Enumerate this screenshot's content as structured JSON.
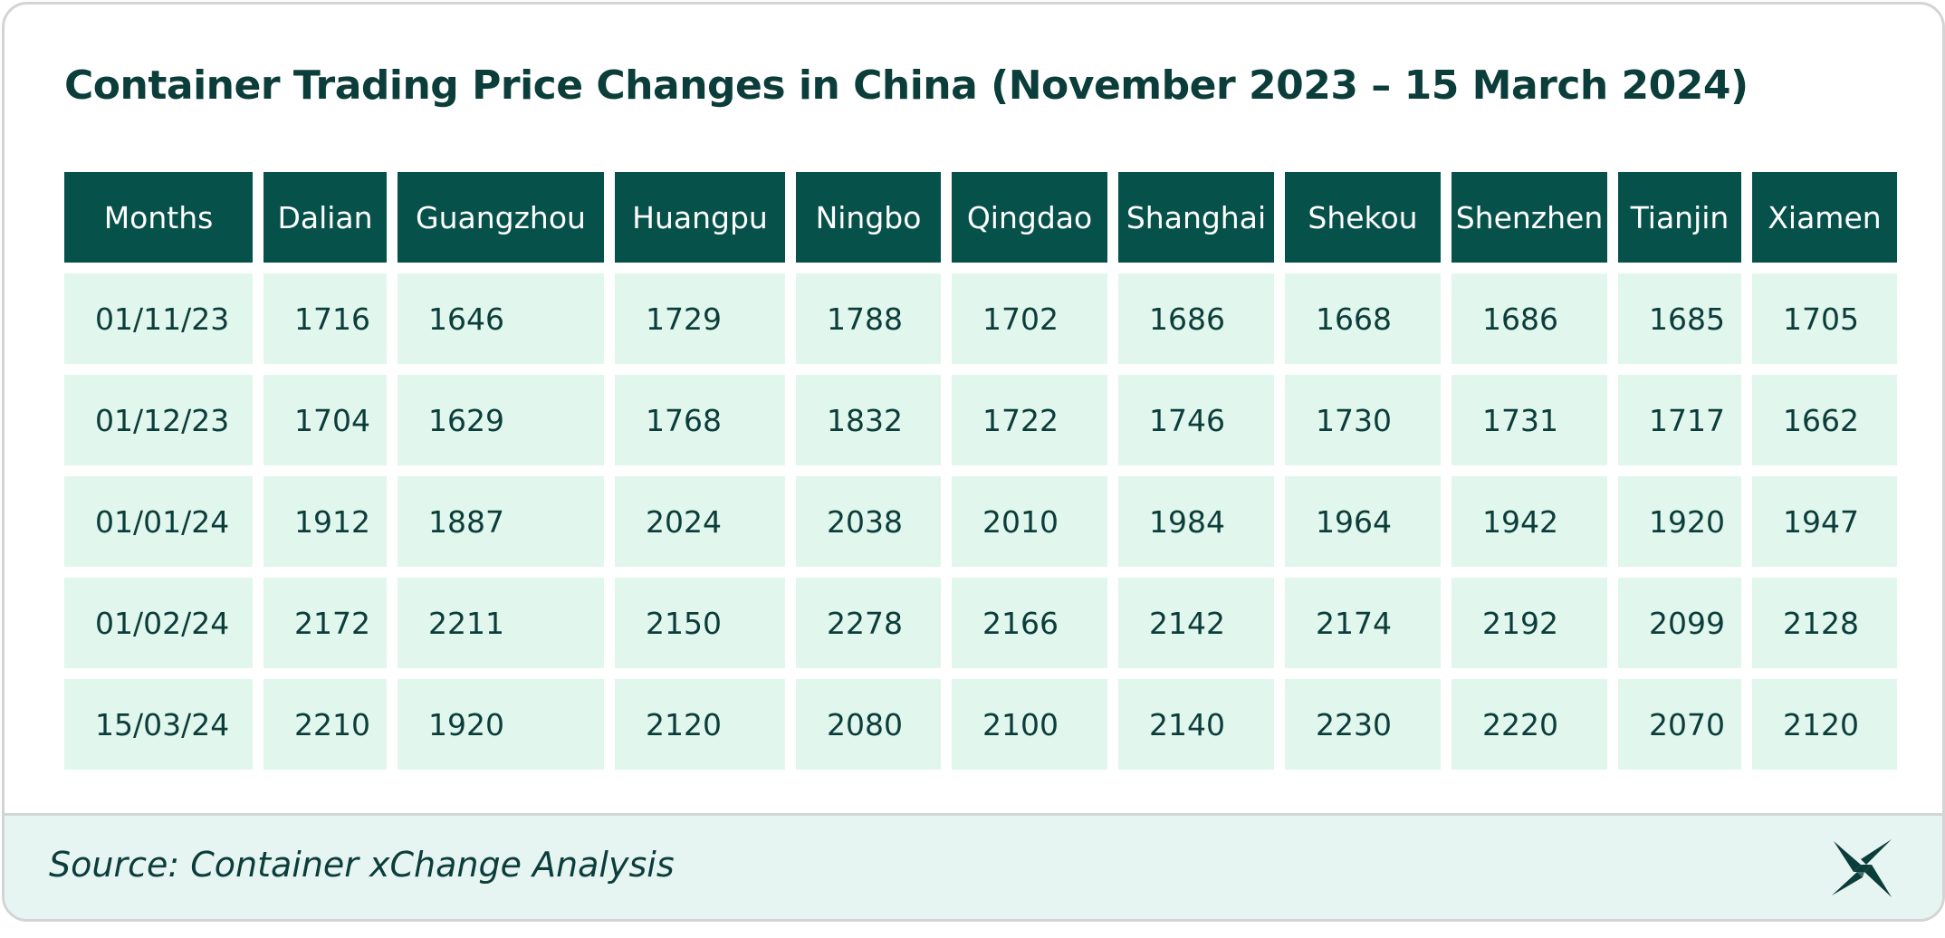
{
  "chart_data": {
    "type": "table",
    "title": "Container Trading Price Changes in China (November 2023 – 15 March 2024)",
    "columns": [
      "Months",
      "Dalian",
      "Guangzhou",
      "Huangpu",
      "Ningbo",
      "Qingdao",
      "Shanghai",
      "Shekou",
      "Shenzhen",
      "Tianjin",
      "Xiamen"
    ],
    "rows": [
      [
        "01/11/23",
        "1716",
        "1646",
        "1729",
        "1788",
        "1702",
        "1686",
        "1668",
        "1686",
        "1685",
        "1705"
      ],
      [
        "01/12/23",
        "1704",
        "1629",
        "1768",
        "1832",
        "1722",
        "1746",
        "1730",
        "1731",
        "1717",
        "1662"
      ],
      [
        "01/01/24",
        "1912",
        "1887",
        "2024",
        "2038",
        "2010",
        "1984",
        "1964",
        "1942",
        "1920",
        "1947"
      ],
      [
        "01/02/24",
        "2172",
        "2211",
        "2150",
        "2278",
        "2166",
        "2142",
        "2174",
        "2192",
        "2099",
        "2128"
      ],
      [
        "15/03/24",
        "2210",
        "1920",
        "2120",
        "2080",
        "2100",
        "2140",
        "2230",
        "2220",
        "2070",
        "2120"
      ]
    ],
    "colors": {
      "header_bg": "#07514b",
      "header_text": "#ffffff",
      "cell_bg": "#e1f6ed",
      "text": "#0b3d3a",
      "footer_bg": "#e6f4f2"
    }
  },
  "footer": {
    "source": "Source: Container xChange Analysis",
    "logo_icon": "xchange-logo-icon"
  }
}
